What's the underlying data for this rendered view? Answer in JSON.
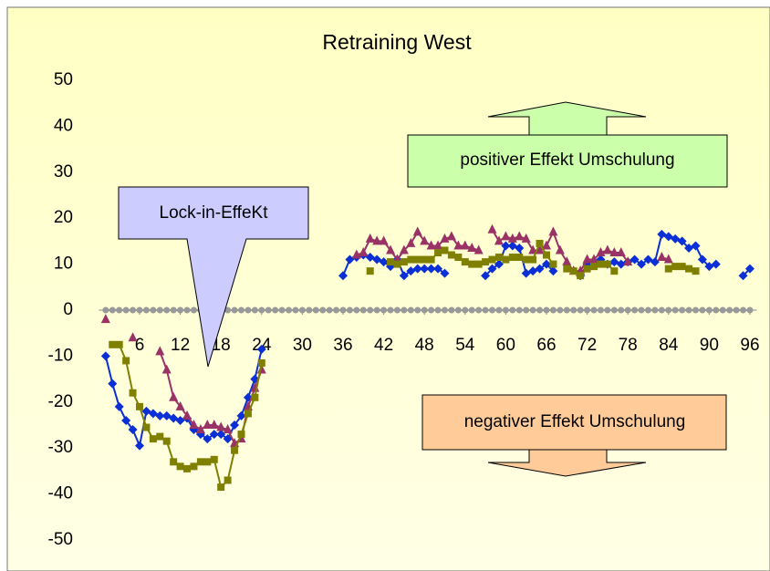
{
  "chart_data": {
    "type": "line",
    "title": "Retraining West",
    "annotations": [
      "Lock-in-EffeKt",
      "positiver Effekt Umschulung",
      "negativer Effekt Umschulung"
    ],
    "x": [
      1,
      2,
      3,
      4,
      5,
      6,
      7,
      8,
      9,
      10,
      11,
      12,
      13,
      14,
      15,
      16,
      17,
      18,
      19,
      20,
      21,
      22,
      23,
      24,
      25,
      26,
      27,
      28,
      29,
      30,
      31,
      32,
      33,
      34,
      35,
      36,
      37,
      38,
      39,
      40,
      41,
      42,
      43,
      44,
      45,
      46,
      47,
      48,
      49,
      50,
      51,
      52,
      53,
      54,
      55,
      56,
      57,
      58,
      59,
      60,
      61,
      62,
      63,
      64,
      65,
      66,
      67,
      68,
      69,
      70,
      71,
      72,
      73,
      74,
      75,
      76,
      77,
      78,
      79,
      80,
      81,
      82,
      83,
      84,
      85,
      86,
      87,
      88,
      89,
      90,
      91,
      92,
      93,
      94,
      95,
      96
    ],
    "xlim": [
      0,
      97
    ],
    "xticks": [
      6,
      12,
      18,
      24,
      30,
      36,
      42,
      48,
      54,
      60,
      66,
      72,
      78,
      84,
      90,
      96
    ],
    "ylim": [
      -50,
      50
    ],
    "yticks": [
      -50,
      -40,
      -30,
      -20,
      -10,
      0,
      10,
      20,
      30,
      40,
      50
    ],
    "series": [
      {
        "color": "#999999",
        "marker": "circle",
        "values": [
          0,
          0,
          0,
          0,
          0,
          0,
          0,
          0,
          0,
          0,
          0,
          0,
          0,
          0,
          0,
          0,
          0,
          0,
          0,
          0,
          0,
          0,
          0,
          0,
          0,
          0,
          0,
          0,
          0,
          0,
          0,
          0,
          0,
          0,
          0,
          0,
          0,
          0,
          0,
          0,
          0,
          0,
          0,
          0,
          0,
          0,
          0,
          0,
          0,
          0,
          0,
          0,
          0,
          0,
          0,
          0,
          0,
          0,
          0,
          0,
          0,
          0,
          0,
          0,
          0,
          0,
          0,
          0,
          0,
          0,
          0,
          0,
          0,
          0,
          0,
          0,
          0,
          0,
          0,
          0,
          0,
          0,
          0,
          0,
          0,
          0,
          0,
          0,
          0,
          0,
          0,
          0,
          0,
          0,
          0,
          0
        ]
      },
      {
        "color": "#0a2fd6",
        "marker": "diamond",
        "values": [
          -10,
          -16,
          -21,
          -24,
          -26,
          -29.5,
          -22,
          -22.5,
          -23,
          -23,
          -23.5,
          -24,
          -23.5,
          -26,
          -27,
          -28,
          -27,
          -27,
          -28,
          -25,
          -23,
          -19,
          -15,
          -8.5,
          null,
          null,
          null,
          null,
          null,
          null,
          null,
          null,
          null,
          null,
          null,
          7.5,
          11,
          11.5,
          12,
          11.5,
          11,
          10.5,
          9.5,
          11,
          7.5,
          8.5,
          9,
          9,
          9,
          9,
          8,
          null,
          null,
          null,
          null,
          null,
          7.5,
          9,
          10,
          14,
          14,
          13.5,
          8,
          8.5,
          9,
          10,
          8.5,
          null,
          null,
          null,
          7.5,
          10,
          10,
          11,
          10,
          10.5,
          10,
          10.5,
          11,
          10,
          11,
          10.5,
          16.5,
          16,
          15.5,
          15,
          13.5,
          14,
          11,
          9.5,
          10,
          null,
          null,
          null,
          7.5,
          9
        ]
      },
      {
        "color": "#993366",
        "marker": "triangle",
        "values": [
          -2,
          null,
          null,
          null,
          -6,
          null,
          null,
          null,
          -9,
          -13,
          -19,
          -21,
          -23,
          -25,
          -26,
          -25,
          -25,
          -25.5,
          -26,
          -29,
          -28,
          -21,
          -17,
          -13,
          null,
          null,
          null,
          null,
          null,
          null,
          null,
          null,
          null,
          null,
          null,
          null,
          null,
          12,
          12.5,
          15.5,
          15,
          15,
          13,
          11,
          13,
          14.5,
          17,
          15,
          14,
          14,
          15.5,
          16,
          14,
          14,
          13.5,
          13,
          null,
          17.5,
          15,
          16,
          15.5,
          16,
          15.5,
          13,
          13,
          14,
          17,
          13,
          10.5,
          8.5,
          8.5,
          11,
          11,
          12.5,
          13,
          12.5,
          12.5,
          10.5,
          null,
          null,
          null,
          null,
          11.5,
          11,
          null,
          null,
          null,
          null,
          null,
          null,
          null,
          null,
          null,
          null,
          null,
          null
        ]
      },
      {
        "color": "#808000",
        "marker": "square",
        "values": [
          null,
          -7.5,
          -7.5,
          -11,
          -18,
          -21,
          -25.5,
          -28,
          -27.5,
          -28.5,
          -33,
          -34,
          -34.5,
          -34,
          -33,
          -33,
          -32.5,
          -38.5,
          -37,
          -30.5,
          -27,
          -22.5,
          -19,
          -11.5,
          null,
          null,
          null,
          null,
          null,
          null,
          null,
          null,
          null,
          null,
          null,
          null,
          null,
          null,
          null,
          8.5,
          null,
          null,
          10.5,
          10,
          10.5,
          11,
          11,
          11,
          11,
          12.5,
          13,
          12,
          11.5,
          10.5,
          10,
          10,
          10.5,
          11,
          11.5,
          11,
          11.5,
          11.5,
          11,
          11,
          14.5,
          12,
          10,
          null,
          9,
          8.5,
          7.5,
          9,
          9.5,
          10,
          10,
          8.5,
          null,
          null,
          null,
          null,
          null,
          null,
          null,
          9,
          9.5,
          9.5,
          9,
          8.5,
          null,
          null,
          null,
          null,
          null,
          null,
          null,
          null
        ]
      }
    ]
  }
}
